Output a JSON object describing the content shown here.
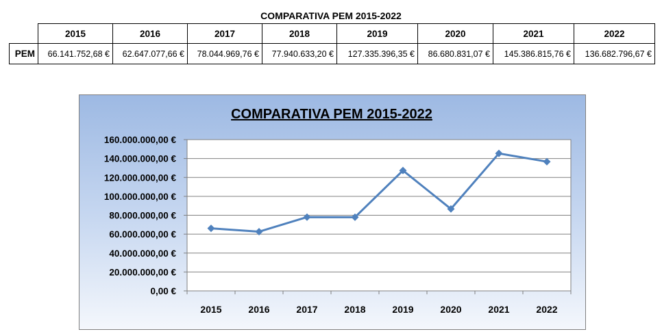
{
  "table": {
    "title": "COMPARATIVA PEM 2015-2022",
    "years": [
      "2015",
      "2016",
      "2017",
      "2018",
      "2019",
      "2020",
      "2021",
      "2022"
    ],
    "row_label": "PEM",
    "values": [
      "66.141.752,68 €",
      "62.647.077,66 €",
      "78.044.969,76 €",
      "77.940.633,20 €",
      "127.335.396,35 €",
      "86.680.831,07 €",
      "145.386.815,76 €",
      "136.682.796,67 €"
    ]
  },
  "chart_data": {
    "type": "line",
    "title": "COMPARATIVA PEM 2015-2022",
    "categories": [
      "2015",
      "2016",
      "2017",
      "2018",
      "2019",
      "2020",
      "2021",
      "2022"
    ],
    "series": [
      {
        "values": [
          66141752.68,
          62647077.66,
          78044969.76,
          77940633.2,
          127335396.35,
          86680831.07,
          145386815.76,
          136682796.67
        ]
      }
    ],
    "ylim": [
      0,
      160000000
    ],
    "yticks": [
      0,
      20000000,
      40000000,
      60000000,
      80000000,
      100000000,
      120000000,
      140000000,
      160000000
    ],
    "ytick_labels": [
      "0,00 €",
      "20.000.000,00 €",
      "40.000.000,00 €",
      "60.000.000,00 €",
      "80.000.000,00 €",
      "100.000.000,00 €",
      "120.000.000,00 €",
      "140.000.000,00 €",
      "160.000.000,00 €"
    ],
    "xlabel": "",
    "ylabel": "",
    "grid": true,
    "legend": "none",
    "line_color": "#4f81bd"
  }
}
